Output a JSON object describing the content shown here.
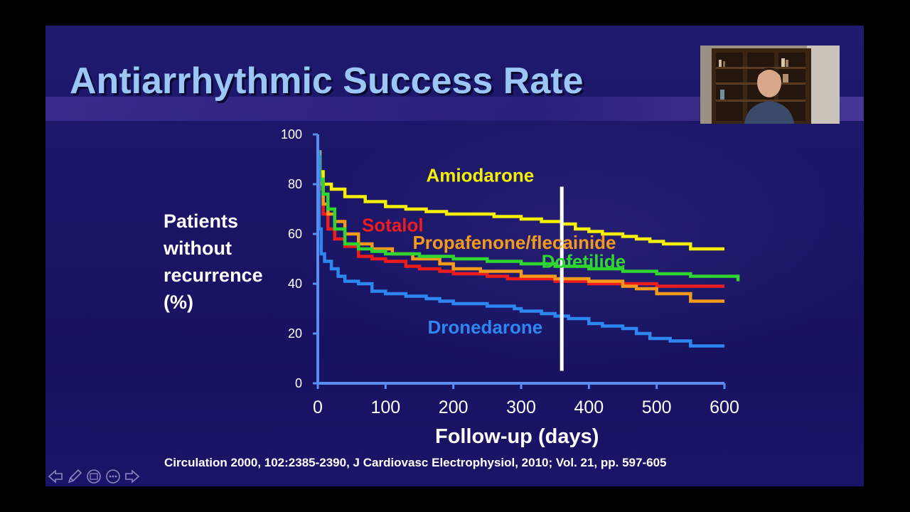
{
  "slide": {
    "title": "Antiarrhythmic Success Rate",
    "citation": "Circulation 2000, 102:2385-2390, J Cardiovasc Electrophysiol, 2010; Vol. 21, pp. 597-605"
  },
  "chart_data": {
    "type": "line",
    "title": "",
    "xlabel": "Follow-up (days)",
    "ylabel_lines": [
      "Patients",
      "without",
      "recurrence",
      "(%)"
    ],
    "xlim": [
      0,
      600
    ],
    "ylim": [
      0,
      100
    ],
    "xticks": [
      0,
      100,
      200,
      300,
      400,
      500,
      600
    ],
    "yticks": [
      0,
      20,
      40,
      60,
      80,
      100
    ],
    "grid": false,
    "legend": "inline labels",
    "reference_line_x": 360,
    "series": [
      {
        "name": "Amiodarone",
        "color": "#f5f000",
        "x": [
          0,
          3,
          8,
          20,
          40,
          70,
          100,
          130,
          160,
          190,
          230,
          260,
          290,
          300,
          330,
          360,
          380,
          400,
          420,
          450,
          470,
          490,
          510,
          530,
          550,
          600
        ],
        "y": [
          93,
          85,
          80,
          78,
          75,
          73,
          71,
          70,
          69,
          68,
          68,
          67,
          67,
          66,
          65,
          64,
          62,
          61,
          60,
          59,
          58,
          57,
          56,
          56,
          54,
          54
        ]
      },
      {
        "name": "Sotalol",
        "color": "#ee1c1c",
        "x": [
          0,
          3,
          8,
          15,
          25,
          40,
          60,
          80,
          100,
          130,
          150,
          180,
          200,
          250,
          280,
          300,
          350,
          400,
          450,
          500,
          550,
          600
        ],
        "y": [
          88,
          78,
          68,
          62,
          58,
          55,
          51,
          50,
          49,
          47,
          46,
          45,
          44,
          43,
          42,
          42,
          41,
          40,
          40,
          39,
          39,
          39
        ]
      },
      {
        "name": "Propafenone/flecainide",
        "color": "#f39a1b",
        "x": [
          0,
          3,
          8,
          15,
          25,
          40,
          60,
          80,
          110,
          140,
          180,
          200,
          240,
          300,
          350,
          400,
          450,
          470,
          500,
          520,
          550,
          600
        ],
        "y": [
          90,
          80,
          72,
          68,
          65,
          60,
          56,
          54,
          52,
          50,
          48,
          46,
          45,
          43,
          42,
          41,
          39,
          38,
          36,
          36,
          33,
          33
        ]
      },
      {
        "name": "Dofetilide",
        "color": "#2fd62f",
        "x": [
          0,
          3,
          8,
          15,
          25,
          40,
          60,
          80,
          100,
          150,
          200,
          250,
          300,
          350,
          400,
          450,
          500,
          550,
          600,
          620
        ],
        "y": [
          91,
          82,
          76,
          70,
          62,
          56,
          54,
          53,
          52,
          51,
          50,
          49,
          48,
          47,
          46,
          45,
          44,
          43,
          43,
          41
        ]
      },
      {
        "name": "Dronedarone",
        "color": "#2e86f0",
        "x": [
          0,
          2,
          5,
          10,
          20,
          30,
          40,
          60,
          80,
          100,
          130,
          160,
          180,
          200,
          250,
          290,
          300,
          330,
          350,
          370,
          400,
          420,
          450,
          470,
          490,
          520,
          550,
          600
        ],
        "y": [
          93,
          62,
          52,
          49,
          46,
          43,
          41,
          40,
          37,
          36,
          35,
          34,
          33,
          32,
          31,
          30,
          29,
          28,
          27,
          26,
          24,
          23,
          22,
          20,
          18,
          17,
          15,
          15
        ]
      }
    ],
    "annotations": [
      {
        "text": "Amiodarone",
        "color": "#f5f000",
        "x": 160,
        "y": 81
      },
      {
        "text": "Sotalol",
        "color": "#ee1c1c",
        "x": 65,
        "y": 61
      },
      {
        "text": "Propafenone/flecainide",
        "color": "#f39a1b",
        "x": 140,
        "y": 54
      },
      {
        "text": "Dofetilide",
        "color": "#2fd62f",
        "x": 330,
        "y": 46.5
      },
      {
        "text": "Dronedarone",
        "color": "#2e86f0",
        "x": 162,
        "y": 20
      }
    ]
  },
  "colors": {
    "axis": "#5b8df0",
    "reference_line": "#ffffff",
    "title": "#9cc6f5"
  },
  "webcam": {
    "icon": "presenter-webcam-icon"
  },
  "nav": {
    "icons": [
      "previous-arrow-icon",
      "pen-icon",
      "slides-menu-icon",
      "more-options-icon",
      "next-arrow-icon"
    ]
  }
}
